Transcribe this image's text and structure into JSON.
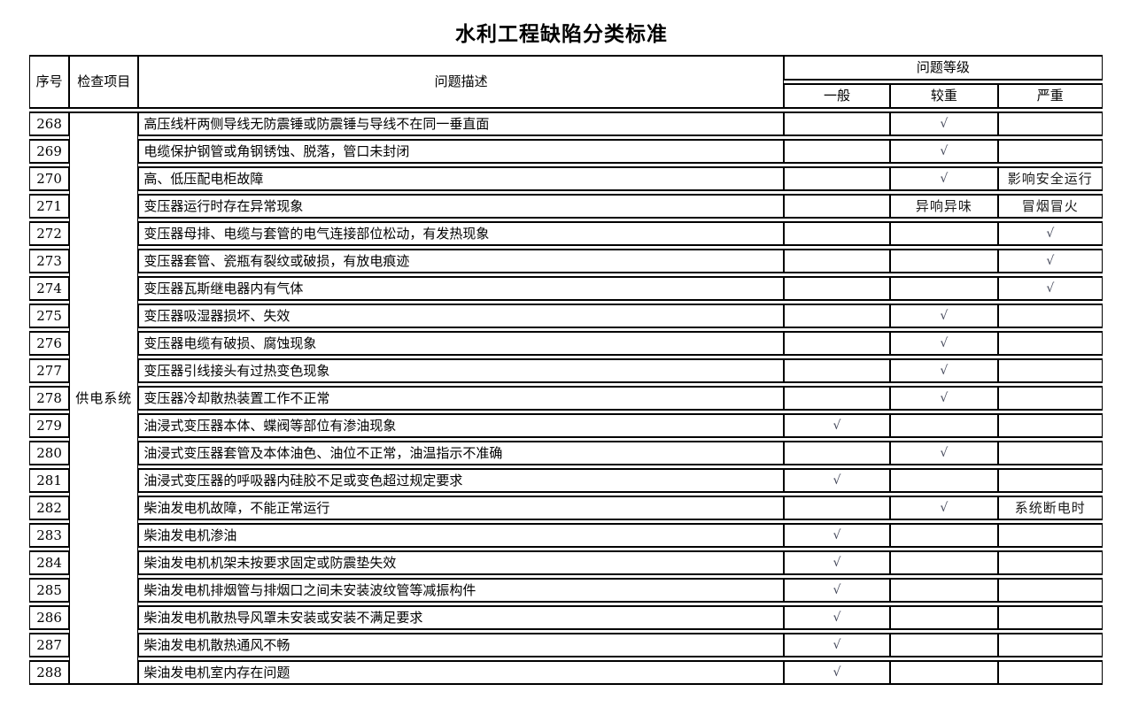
{
  "title": "水利工程缺陷分类标准",
  "table": {
    "headers": {
      "index": "序号",
      "category": "检查项目",
      "description": "问题描述",
      "level_group": "问题等级",
      "levels": [
        "一般",
        "较重",
        "严重"
      ]
    },
    "category_value": "供电系统",
    "check_mark": "√",
    "rows": [
      {
        "no": "268",
        "desc": "高压线杆两侧导线无防震锤或防震锤与导线不在同一垂直面",
        "general": "",
        "moderate": "√",
        "severe": ""
      },
      {
        "no": "269",
        "desc": "电缆保护钢管或角钢锈蚀、脱落，管口未封闭",
        "general": "",
        "moderate": "√",
        "severe": ""
      },
      {
        "no": "270",
        "desc": "高、低压配电柜故障",
        "general": "",
        "moderate": "√",
        "severe": "影响安全运行"
      },
      {
        "no": "271",
        "desc": "变压器运行时存在异常现象",
        "general": "",
        "moderate": "异响异味",
        "severe": "冒烟冒火"
      },
      {
        "no": "272",
        "desc": "变压器母排、电缆与套管的电气连接部位松动，有发热现象",
        "general": "",
        "moderate": "",
        "severe": "√"
      },
      {
        "no": "273",
        "desc": "变压器套管、瓷瓶有裂纹或破损，有放电痕迹",
        "general": "",
        "moderate": "",
        "severe": "√"
      },
      {
        "no": "274",
        "desc": "变压器瓦斯继电器内有气体",
        "general": "",
        "moderate": "",
        "severe": "√"
      },
      {
        "no": "275",
        "desc": "变压器吸湿器损坏、失效",
        "general": "",
        "moderate": "√",
        "severe": ""
      },
      {
        "no": "276",
        "desc": "变压器电缆有破损、腐蚀现象",
        "general": "",
        "moderate": "√",
        "severe": ""
      },
      {
        "no": "277",
        "desc": "变压器引线接头有过热变色现象",
        "general": "",
        "moderate": "√",
        "severe": ""
      },
      {
        "no": "278",
        "desc": "变压器冷却散热装置工作不正常",
        "general": "",
        "moderate": "√",
        "severe": ""
      },
      {
        "no": "279",
        "desc": "油浸式变压器本体、蝶阀等部位有渗油现象",
        "general": "√",
        "moderate": "",
        "severe": ""
      },
      {
        "no": "280",
        "desc": "油浸式变压器套管及本体油色、油位不正常，油温指示不准确",
        "general": "",
        "moderate": "√",
        "severe": ""
      },
      {
        "no": "281",
        "desc": "油浸式变压器的呼吸器内硅胶不足或变色超过规定要求",
        "general": "√",
        "moderate": "",
        "severe": ""
      },
      {
        "no": "282",
        "desc": "柴油发电机故障，不能正常运行",
        "general": "",
        "moderate": "√",
        "severe": "系统断电时"
      },
      {
        "no": "283",
        "desc": "柴油发电机渗油",
        "general": "√",
        "moderate": "",
        "severe": ""
      },
      {
        "no": "284",
        "desc": "柴油发电机机架未按要求固定或防震垫失效",
        "general": "√",
        "moderate": "",
        "severe": ""
      },
      {
        "no": "285",
        "desc": "柴油发电机排烟管与排烟口之间未安装波纹管等减振构件",
        "general": "√",
        "moderate": "",
        "severe": ""
      },
      {
        "no": "286",
        "desc": "柴油发电机散热导风罩未安装或安装不满足要求",
        "general": "√",
        "moderate": "",
        "severe": ""
      },
      {
        "no": "287",
        "desc": "柴油发电机散热通风不畅",
        "general": "√",
        "moderate": "",
        "severe": ""
      },
      {
        "no": "288",
        "desc": "柴油发电机室内存在问题",
        "general": "√",
        "moderate": "",
        "severe": ""
      }
    ]
  }
}
